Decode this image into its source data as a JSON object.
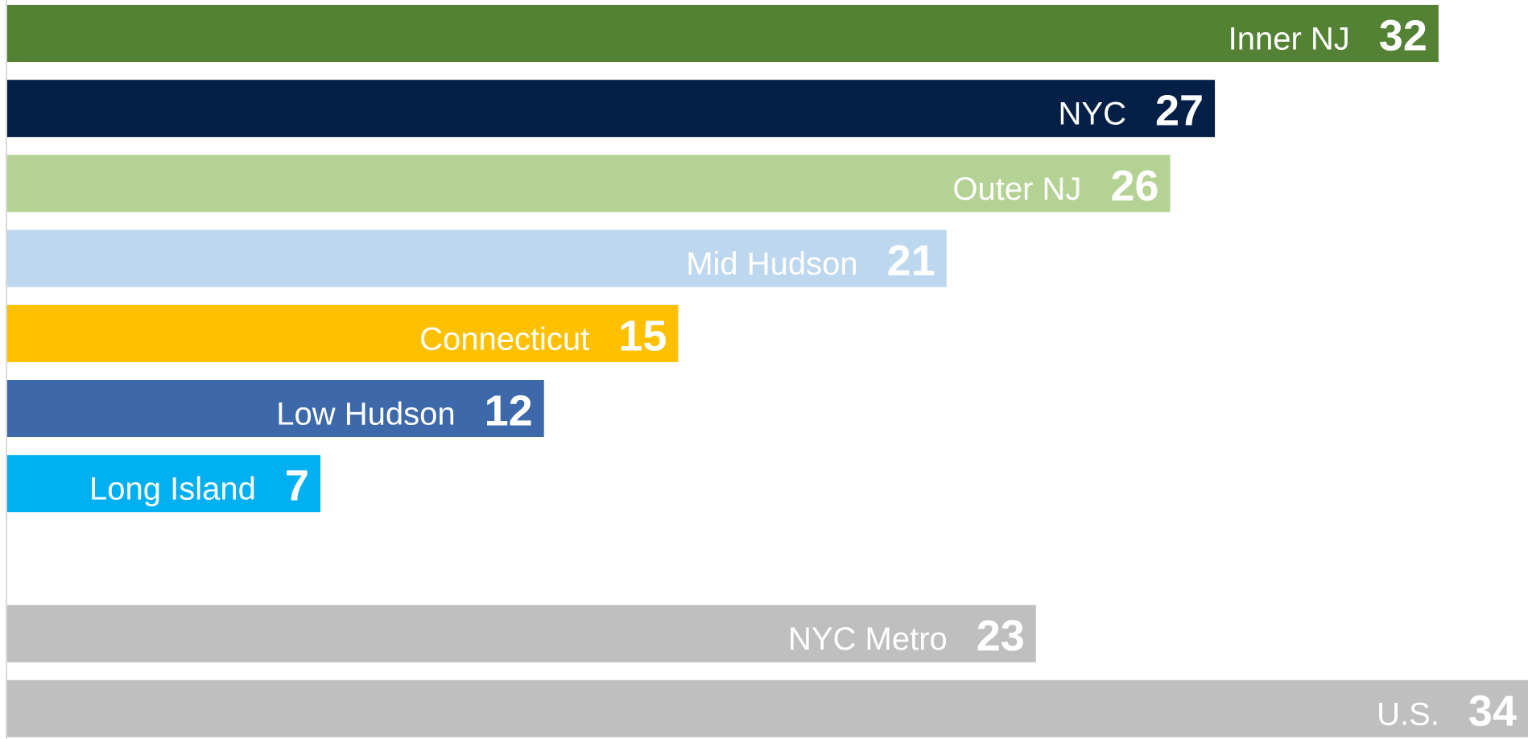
{
  "chart_data": {
    "type": "bar",
    "orientation": "horizontal",
    "categories": [
      "Inner NJ",
      "NYC",
      "Outer NJ",
      "Mid Hudson",
      "Connecticut",
      "Low Hudson",
      "Long Island",
      null,
      "NYC Metro",
      "U.S."
    ],
    "values": [
      32,
      27,
      26,
      21,
      15,
      12,
      7,
      null,
      23,
      34
    ],
    "colors": [
      "#548235",
      "#042046",
      "#b4d293",
      "#bdd7ee",
      "#ffc000",
      "#3d69aa",
      "#00b0f0",
      null,
      "#bfbfbf",
      "#bfbfbf"
    ],
    "xlim": [
      0,
      34
    ]
  }
}
